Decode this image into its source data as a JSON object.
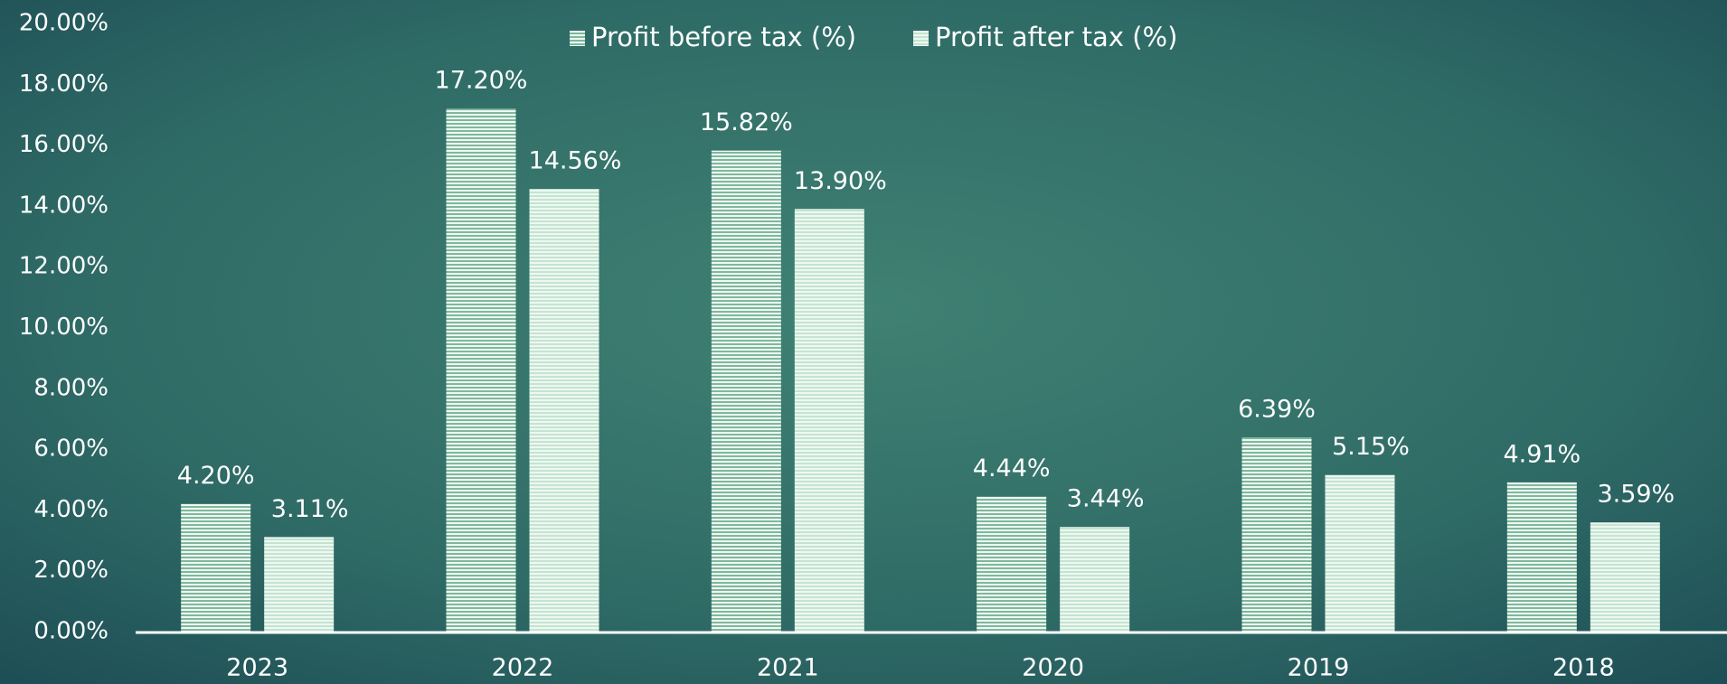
{
  "chart_data": {
    "type": "bar",
    "categories": [
      "2023",
      "2022",
      "2021",
      "2020",
      "2019",
      "2018"
    ],
    "series": [
      {
        "name": "Profit before tax (%)",
        "color": "#7fb89d",
        "values": [
          4.2,
          17.2,
          15.82,
          4.44,
          6.39,
          4.91
        ],
        "value_labels": [
          "4.20%",
          "17.20%",
          "15.82%",
          "4.44%",
          "6.39%",
          "4.91%"
        ]
      },
      {
        "name": "Profit after tax (%)",
        "color": "#c4e4d1",
        "values": [
          3.11,
          14.56,
          13.9,
          3.44,
          5.15,
          3.59
        ],
        "value_labels": [
          "3.11%",
          "14.56%",
          "13.90%",
          "3.44%",
          "5.15%",
          "3.59%"
        ]
      }
    ],
    "ylim": [
      0,
      20
    ],
    "yticks": [
      {
        "value": 0,
        "label": "0.00%"
      },
      {
        "value": 2,
        "label": "2.00%"
      },
      {
        "value": 4,
        "label": "4.00%"
      },
      {
        "value": 6,
        "label": "6.00%"
      },
      {
        "value": 8,
        "label": "8.00%"
      },
      {
        "value": 10,
        "label": "10.00%"
      },
      {
        "value": 12,
        "label": "12.00%"
      },
      {
        "value": 14,
        "label": "14.00%"
      },
      {
        "value": 16,
        "label": "16.00%"
      },
      {
        "value": 18,
        "label": "18.00%"
      },
      {
        "value": 20,
        "label": "20.00%"
      }
    ],
    "grid": false,
    "legend": "top"
  }
}
